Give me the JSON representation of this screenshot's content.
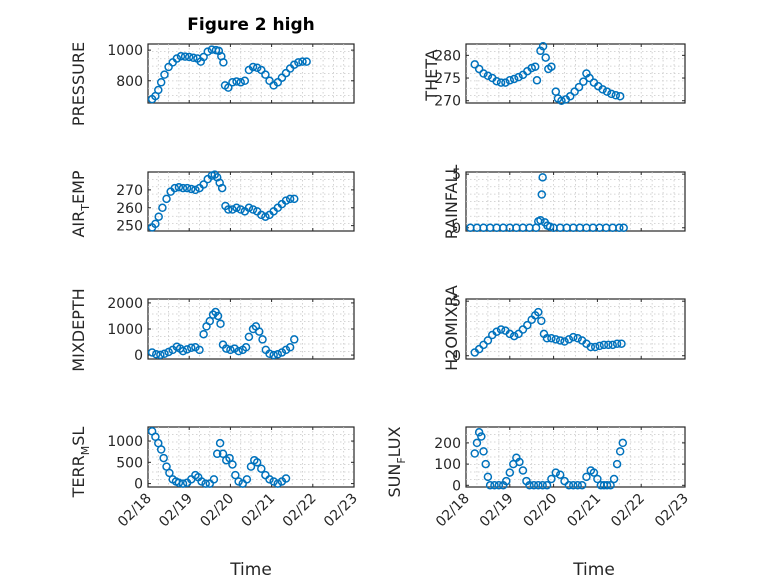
{
  "figure_title": "Figure 2 high",
  "marker_color": "#0072bd",
  "chart_data": [
    {
      "type": "scatter",
      "id": "pressure",
      "ylabel": "PRESSURE",
      "title": "Figure 2 high",
      "xlim": [
        0,
        5
      ],
      "ylim": [
        655,
        1040
      ],
      "yticks": [
        800,
        1000
      ],
      "xticklabels_shown": false,
      "points": [
        [
          0.1,
          680
        ],
        [
          0.18,
          700
        ],
        [
          0.25,
          740
        ],
        [
          0.32,
          790
        ],
        [
          0.4,
          840
        ],
        [
          0.5,
          890
        ],
        [
          0.6,
          920
        ],
        [
          0.7,
          945
        ],
        [
          0.8,
          960
        ],
        [
          0.9,
          958
        ],
        [
          1.0,
          955
        ],
        [
          1.1,
          950
        ],
        [
          1.2,
          945
        ],
        [
          1.28,
          925
        ],
        [
          1.35,
          955
        ],
        [
          1.45,
          990
        ],
        [
          1.55,
          1003
        ],
        [
          1.65,
          1000
        ],
        [
          1.72,
          995
        ],
        [
          1.78,
          960
        ],
        [
          1.83,
          920
        ],
        [
          1.87,
          770
        ],
        [
          1.95,
          755
        ],
        [
          2.05,
          790
        ],
        [
          2.15,
          795
        ],
        [
          2.25,
          790
        ],
        [
          2.35,
          800
        ],
        [
          2.45,
          870
        ],
        [
          2.55,
          890
        ],
        [
          2.65,
          885
        ],
        [
          2.75,
          870
        ],
        [
          2.85,
          840
        ],
        [
          2.95,
          800
        ],
        [
          3.05,
          770
        ],
        [
          3.15,
          790
        ],
        [
          3.25,
          820
        ],
        [
          3.35,
          850
        ],
        [
          3.45,
          880
        ],
        [
          3.55,
          905
        ],
        [
          3.65,
          920
        ],
        [
          3.75,
          925
        ],
        [
          3.85,
          925
        ]
      ]
    },
    {
      "type": "scatter",
      "id": "theta",
      "ylabel": "THETA",
      "xlim": [
        0,
        5
      ],
      "ylim": [
        269.5,
        282.5
      ],
      "yticks": [
        270,
        275,
        280
      ],
      "xticklabels_shown": false,
      "points": [
        [
          0.2,
          278
        ],
        [
          0.3,
          277
        ],
        [
          0.4,
          276
        ],
        [
          0.5,
          275.5
        ],
        [
          0.6,
          275
        ],
        [
          0.7,
          274.3
        ],
        [
          0.8,
          274
        ],
        [
          0.9,
          274
        ],
        [
          1.0,
          274.5
        ],
        [
          1.1,
          274.8
        ],
        [
          1.2,
          275.2
        ],
        [
          1.3,
          275.7
        ],
        [
          1.4,
          276.5
        ],
        [
          1.5,
          277.2
        ],
        [
          1.58,
          277.5
        ],
        [
          1.62,
          274.5
        ],
        [
          1.7,
          281
        ],
        [
          1.76,
          282
        ],
        [
          1.82,
          279.5
        ],
        [
          1.88,
          277
        ],
        [
          1.95,
          277.5
        ],
        [
          2.05,
          272
        ],
        [
          2.1,
          270.5
        ],
        [
          2.18,
          270
        ],
        [
          2.28,
          270.3
        ],
        [
          2.38,
          271
        ],
        [
          2.48,
          272
        ],
        [
          2.58,
          273
        ],
        [
          2.68,
          274.2
        ],
        [
          2.75,
          276
        ],
        [
          2.82,
          275
        ],
        [
          2.92,
          274
        ],
        [
          3.02,
          273.2
        ],
        [
          3.12,
          272.5
        ],
        [
          3.22,
          272
        ],
        [
          3.32,
          271.5
        ],
        [
          3.42,
          271.2
        ],
        [
          3.52,
          271
        ]
      ]
    },
    {
      "type": "scatter",
      "id": "air_temp",
      "ylabel": "AIR_TEMP",
      "xlim": [
        0,
        5
      ],
      "ylim": [
        247,
        280
      ],
      "yticks": [
        250,
        260,
        270
      ],
      "xticklabels_shown": false,
      "points": [
        [
          0.1,
          249
        ],
        [
          0.18,
          251
        ],
        [
          0.26,
          255
        ],
        [
          0.35,
          260
        ],
        [
          0.45,
          265
        ],
        [
          0.55,
          269
        ],
        [
          0.65,
          271
        ],
        [
          0.75,
          271.5
        ],
        [
          0.85,
          271
        ],
        [
          0.95,
          271
        ],
        [
          1.05,
          270.5
        ],
        [
          1.15,
          270
        ],
        [
          1.25,
          271
        ],
        [
          1.35,
          273
        ],
        [
          1.45,
          276
        ],
        [
          1.55,
          278
        ],
        [
          1.62,
          278.5
        ],
        [
          1.68,
          277
        ],
        [
          1.74,
          274
        ],
        [
          1.8,
          271
        ],
        [
          1.88,
          261
        ],
        [
          1.95,
          259
        ],
        [
          2.05,
          259
        ],
        [
          2.15,
          260
        ],
        [
          2.25,
          259
        ],
        [
          2.35,
          258
        ],
        [
          2.45,
          260
        ],
        [
          2.55,
          259
        ],
        [
          2.65,
          258
        ],
        [
          2.75,
          256
        ],
        [
          2.85,
          255
        ],
        [
          2.95,
          256
        ],
        [
          3.05,
          258
        ],
        [
          3.15,
          260
        ],
        [
          3.25,
          262
        ],
        [
          3.35,
          264
        ],
        [
          3.45,
          265
        ],
        [
          3.55,
          265
        ]
      ]
    },
    {
      "type": "scatter",
      "id": "rainfall",
      "ylabel": "RAINFALL",
      "xlim": [
        0,
        5
      ],
      "ylim": [
        -0.3,
        5.2
      ],
      "yticks": [
        0,
        5
      ],
      "xticklabels_shown": false,
      "points": [
        [
          0.1,
          0
        ],
        [
          0.25,
          0
        ],
        [
          0.4,
          0
        ],
        [
          0.55,
          0
        ],
        [
          0.7,
          0
        ],
        [
          0.85,
          0
        ],
        [
          1.0,
          0
        ],
        [
          1.15,
          0
        ],
        [
          1.3,
          0
        ],
        [
          1.45,
          0
        ],
        [
          1.6,
          0
        ],
        [
          1.65,
          0.6
        ],
        [
          1.7,
          0.7
        ],
        [
          1.73,
          3.1
        ],
        [
          1.75,
          4.7
        ],
        [
          1.8,
          0.5
        ],
        [
          1.86,
          0.2
        ],
        [
          1.92,
          0.1
        ],
        [
          2.0,
          0
        ],
        [
          2.15,
          0
        ],
        [
          2.3,
          0
        ],
        [
          2.45,
          0
        ],
        [
          2.6,
          0
        ],
        [
          2.75,
          0
        ],
        [
          2.9,
          0
        ],
        [
          3.05,
          0
        ],
        [
          3.2,
          0
        ],
        [
          3.35,
          0
        ],
        [
          3.5,
          0
        ],
        [
          3.6,
          0
        ]
      ]
    },
    {
      "type": "scatter",
      "id": "mixdepth",
      "ylabel": "MIXDEPTH",
      "xlim": [
        0,
        5
      ],
      "ylim": [
        -150,
        2150
      ],
      "yticks": [
        0,
        1000,
        2000
      ],
      "xticklabels_shown": false,
      "points": [
        [
          0.1,
          100
        ],
        [
          0.2,
          30
        ],
        [
          0.3,
          10
        ],
        [
          0.4,
          50
        ],
        [
          0.5,
          120
        ],
        [
          0.6,
          200
        ],
        [
          0.7,
          320
        ],
        [
          0.78,
          250
        ],
        [
          0.85,
          150
        ],
        [
          0.95,
          220
        ],
        [
          1.05,
          280
        ],
        [
          1.15,
          300
        ],
        [
          1.25,
          200
        ],
        [
          1.35,
          800
        ],
        [
          1.42,
          1100
        ],
        [
          1.5,
          1300
        ],
        [
          1.58,
          1550
        ],
        [
          1.64,
          1650
        ],
        [
          1.7,
          1500
        ],
        [
          1.76,
          1200
        ],
        [
          1.82,
          400
        ],
        [
          1.9,
          250
        ],
        [
          2.0,
          200
        ],
        [
          2.1,
          250
        ],
        [
          2.2,
          150
        ],
        [
          2.3,
          200
        ],
        [
          2.38,
          300
        ],
        [
          2.45,
          700
        ],
        [
          2.55,
          1000
        ],
        [
          2.62,
          1100
        ],
        [
          2.7,
          900
        ],
        [
          2.78,
          600
        ],
        [
          2.86,
          200
        ],
        [
          2.95,
          50
        ],
        [
          3.05,
          0
        ],
        [
          3.15,
          30
        ],
        [
          3.25,
          100
        ],
        [
          3.35,
          200
        ],
        [
          3.45,
          300
        ],
        [
          3.55,
          600
        ]
      ]
    },
    {
      "type": "scatter",
      "id": "h2omixra",
      "ylabel": "H2OMIXRA",
      "xlim": [
        0,
        5
      ],
      "ylim": [
        -0.3,
        5.2
      ],
      "yticks": [
        0,
        5
      ],
      "xticklabels_shown": false,
      "points": [
        [
          0.2,
          0.3
        ],
        [
          0.3,
          0.6
        ],
        [
          0.4,
          1
        ],
        [
          0.5,
          1.4
        ],
        [
          0.6,
          1.9
        ],
        [
          0.7,
          2.2
        ],
        [
          0.8,
          2.4
        ],
        [
          0.9,
          2.3
        ],
        [
          1.0,
          2
        ],
        [
          1.1,
          1.8
        ],
        [
          1.2,
          2
        ],
        [
          1.3,
          2.4
        ],
        [
          1.4,
          2.8
        ],
        [
          1.5,
          3.3
        ],
        [
          1.58,
          3.7
        ],
        [
          1.65,
          4
        ],
        [
          1.72,
          3.2
        ],
        [
          1.78,
          2
        ],
        [
          1.85,
          1.6
        ],
        [
          1.95,
          1.6
        ],
        [
          2.05,
          1.5
        ],
        [
          2.15,
          1.4
        ],
        [
          2.25,
          1.3
        ],
        [
          2.35,
          1.5
        ],
        [
          2.45,
          1.7
        ],
        [
          2.55,
          1.6
        ],
        [
          2.65,
          1.4
        ],
        [
          2.75,
          1.1
        ],
        [
          2.85,
          0.8
        ],
        [
          2.95,
          0.8
        ],
        [
          3.05,
          0.9
        ],
        [
          3.15,
          1
        ],
        [
          3.25,
          1
        ],
        [
          3.35,
          1
        ],
        [
          3.45,
          1.1
        ],
        [
          3.55,
          1.1
        ]
      ]
    },
    {
      "type": "scatter",
      "id": "terr_msl",
      "ylabel": "TERR_MSL",
      "xlim": [
        0,
        5
      ],
      "ylim": [
        -80,
        1330
      ],
      "yticks": [
        0,
        500,
        1000
      ],
      "xticks": [
        0,
        1,
        2,
        3,
        4,
        5
      ],
      "xticklabels": [
        "02/18",
        "02/19",
        "02/20",
        "02/21",
        "02/22",
        "02/23"
      ],
      "xlabel": "Time",
      "points": [
        [
          0.1,
          1230
        ],
        [
          0.18,
          1100
        ],
        [
          0.25,
          950
        ],
        [
          0.32,
          800
        ],
        [
          0.38,
          600
        ],
        [
          0.45,
          400
        ],
        [
          0.52,
          250
        ],
        [
          0.6,
          100
        ],
        [
          0.68,
          50
        ],
        [
          0.75,
          20
        ],
        [
          0.85,
          0
        ],
        [
          0.95,
          20
        ],
        [
          1.05,
          100
        ],
        [
          1.15,
          200
        ],
        [
          1.22,
          150
        ],
        [
          1.3,
          50
        ],
        [
          1.4,
          0
        ],
        [
          1.5,
          0
        ],
        [
          1.6,
          100
        ],
        [
          1.68,
          700
        ],
        [
          1.75,
          950
        ],
        [
          1.82,
          700
        ],
        [
          1.9,
          550
        ],
        [
          1.98,
          600
        ],
        [
          2.05,
          450
        ],
        [
          2.12,
          200
        ],
        [
          2.2,
          50
        ],
        [
          2.3,
          0
        ],
        [
          2.4,
          100
        ],
        [
          2.5,
          400
        ],
        [
          2.58,
          550
        ],
        [
          2.65,
          500
        ],
        [
          2.75,
          350
        ],
        [
          2.85,
          200
        ],
        [
          2.95,
          100
        ],
        [
          3.05,
          50
        ],
        [
          3.15,
          0
        ],
        [
          3.25,
          50
        ],
        [
          3.35,
          120
        ]
      ]
    },
    {
      "type": "scatter",
      "id": "sun_flux",
      "ylabel": "SUN_FLUX",
      "xlim": [
        0,
        5
      ],
      "ylim": [
        -8,
        275
      ],
      "yticks": [
        0,
        100,
        200
      ],
      "xticks": [
        0,
        1,
        2,
        3,
        4,
        5
      ],
      "xticklabels": [
        "02/18",
        "02/19",
        "02/20",
        "02/21",
        "02/22",
        "02/23"
      ],
      "xlabel": "Time",
      "points": [
        [
          0.2,
          150
        ],
        [
          0.25,
          200
        ],
        [
          0.3,
          250
        ],
        [
          0.35,
          230
        ],
        [
          0.4,
          160
        ],
        [
          0.45,
          100
        ],
        [
          0.5,
          40
        ],
        [
          0.55,
          0
        ],
        [
          0.65,
          0
        ],
        [
          0.75,
          0
        ],
        [
          0.85,
          0
        ],
        [
          0.92,
          20
        ],
        [
          1.0,
          60
        ],
        [
          1.08,
          100
        ],
        [
          1.15,
          130
        ],
        [
          1.22,
          110
        ],
        [
          1.3,
          70
        ],
        [
          1.38,
          20
        ],
        [
          1.45,
          0
        ],
        [
          1.55,
          0
        ],
        [
          1.65,
          0
        ],
        [
          1.75,
          0
        ],
        [
          1.85,
          0
        ],
        [
          1.95,
          30
        ],
        [
          2.05,
          60
        ],
        [
          2.15,
          50
        ],
        [
          2.25,
          20
        ],
        [
          2.35,
          0
        ],
        [
          2.45,
          0
        ],
        [
          2.55,
          0
        ],
        [
          2.65,
          0
        ],
        [
          2.75,
          40
        ],
        [
          2.85,
          70
        ],
        [
          2.92,
          60
        ],
        [
          3.0,
          30
        ],
        [
          3.08,
          0
        ],
        [
          3.15,
          0
        ],
        [
          3.22,
          0
        ],
        [
          3.3,
          0
        ],
        [
          3.38,
          30
        ],
        [
          3.45,
          100
        ],
        [
          3.52,
          160
        ],
        [
          3.58,
          200
        ]
      ]
    }
  ]
}
